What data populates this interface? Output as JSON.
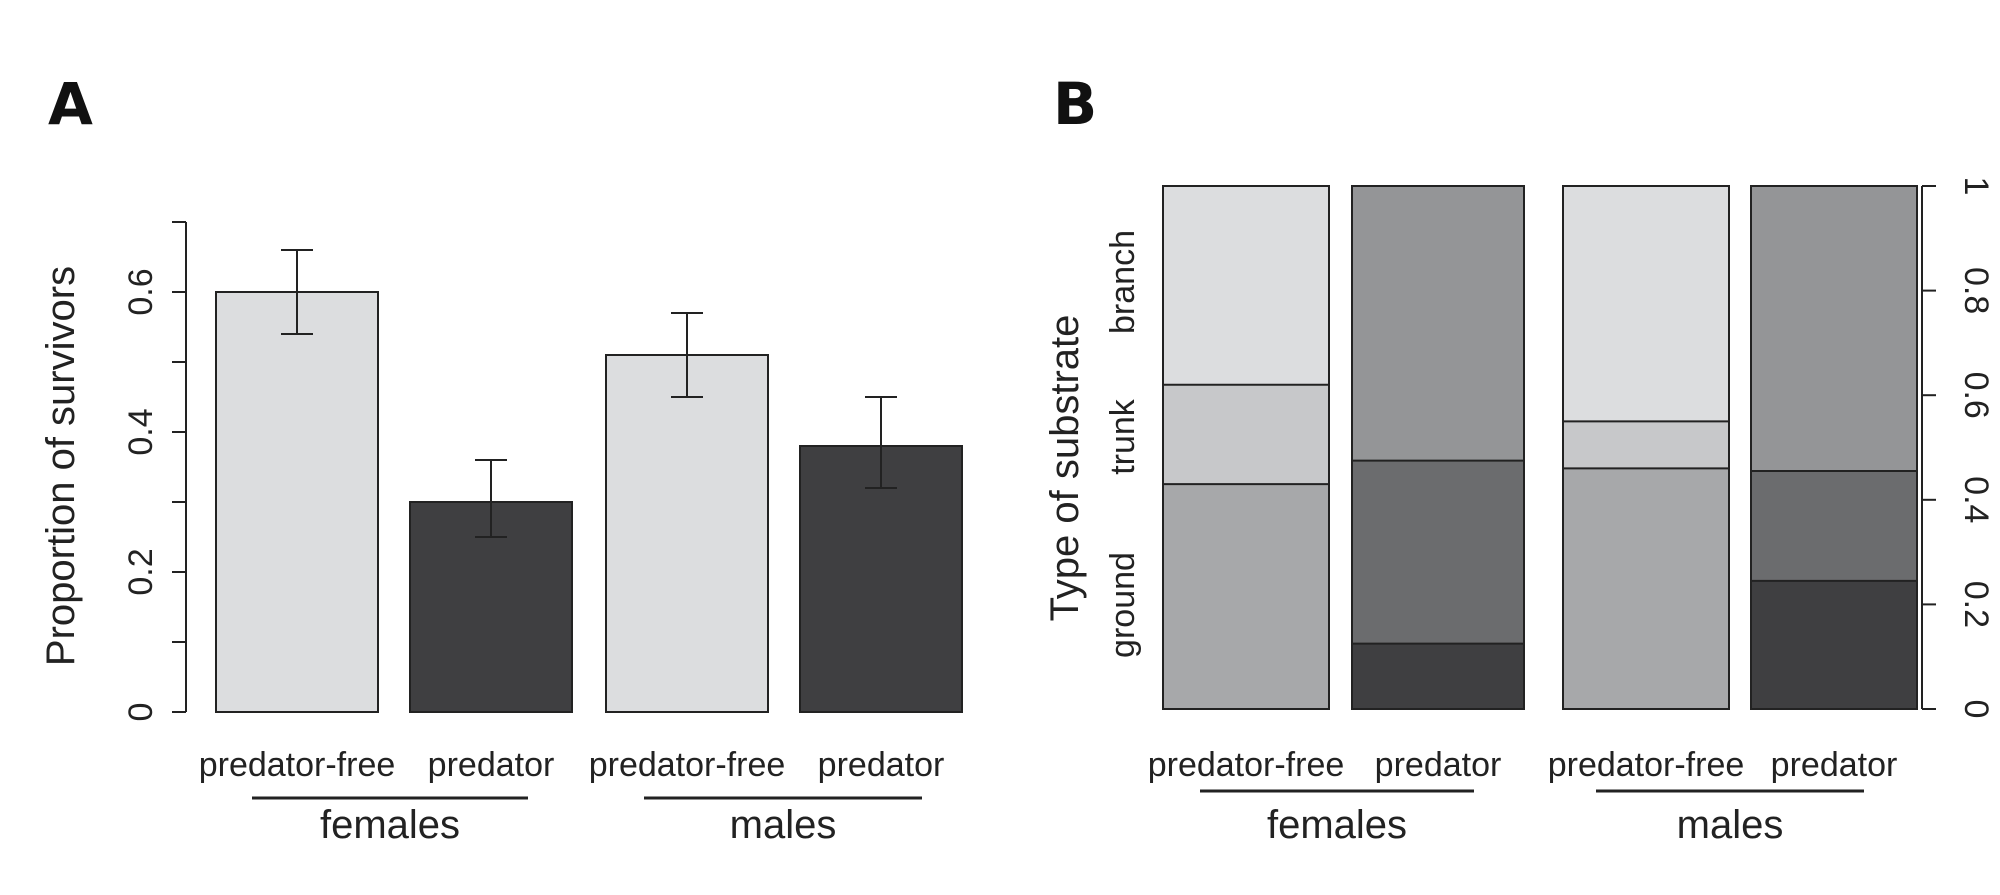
{
  "chart_data": [
    {
      "panel": "A",
      "type": "bar",
      "ylabel": "Proportion of survivors",
      "ylim": [
        0,
        0.7
      ],
      "yticks": [
        "0",
        "0.2",
        "0.4",
        "0.6"
      ],
      "categories": [
        "predator-free",
        "predator",
        "predator-free",
        "predator"
      ],
      "groups": [
        "females",
        "males"
      ],
      "values": [
        0.6,
        0.3,
        0.51,
        0.38
      ],
      "errors": [
        [
          0.54,
          0.66
        ],
        [
          0.25,
          0.36
        ],
        [
          0.45,
          0.57
        ],
        [
          0.32,
          0.45
        ]
      ],
      "colors": [
        "#dcdddf",
        "#3f3f41",
        "#dcdddf",
        "#3f3f41"
      ]
    },
    {
      "panel": "B",
      "type": "bar",
      "stacked": true,
      "ylabel": "Type of substrate",
      "ylim": [
        0,
        1
      ],
      "yticks": [
        "0",
        "0.2",
        "0.4",
        "0.6",
        "0.8",
        "1"
      ],
      "substrate_labels": [
        "ground",
        "trunk",
        "branch"
      ],
      "categories": [
        "predator-free",
        "predator",
        "predator-free",
        "predator"
      ],
      "groups": [
        "females",
        "males"
      ],
      "series": [
        {
          "name": "ground",
          "values": [
            0.43,
            0.125,
            0.46,
            0.245
          ]
        },
        {
          "name": "trunk",
          "values": [
            0.19,
            0.35,
            0.09,
            0.21
          ]
        },
        {
          "name": "branch",
          "values": [
            0.38,
            0.525,
            0.45,
            0.545
          ]
        }
      ],
      "colors": [
        [
          "#a7a8aa",
          "#c7c8ca",
          "#dcdddf"
        ],
        [
          "#3f3f41",
          "#6b6c6e",
          "#949597"
        ],
        [
          "#a7a8aa",
          "#c7c8ca",
          "#dcdddf"
        ],
        [
          "#3f3f41",
          "#6b6c6e",
          "#949597"
        ]
      ]
    }
  ]
}
